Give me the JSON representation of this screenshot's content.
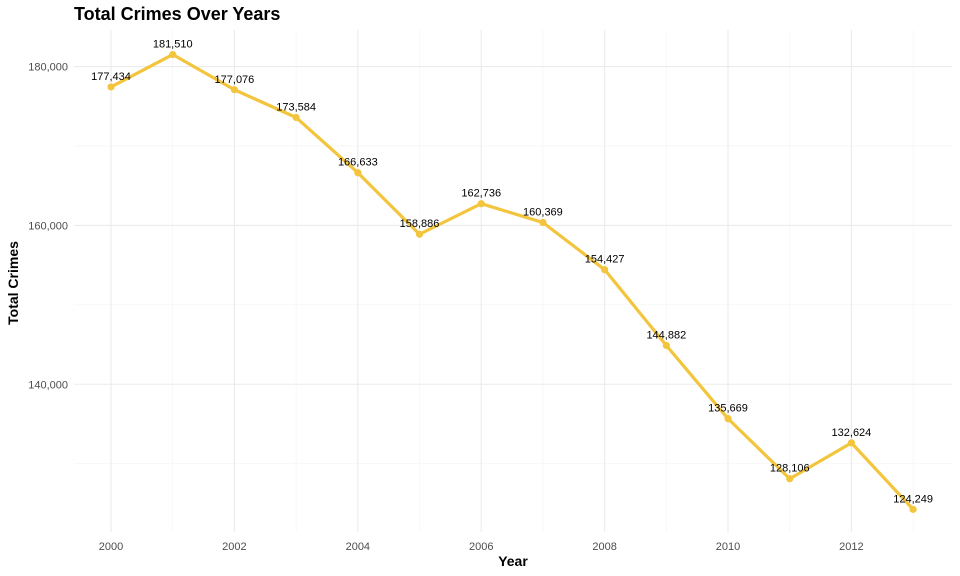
{
  "chart_data": {
    "type": "line",
    "title": "Total Crimes Over Years",
    "xlabel": "Year",
    "ylabel": "Total Crimes",
    "x": [
      2000,
      2001,
      2002,
      2003,
      2004,
      2005,
      2006,
      2007,
      2008,
      2009,
      2010,
      2011,
      2012,
      2013
    ],
    "series": [
      {
        "values": [
          177434,
          181510,
          177076,
          173584,
          166633,
          158886,
          162736,
          160369,
          154427,
          144882,
          135669,
          128106,
          132624,
          124249
        ],
        "labels": [
          "177,434",
          "181,510",
          "177,076",
          "173,584",
          "166,633",
          "158,886",
          "162,736",
          "160,369",
          "154,427",
          "144,882",
          "135,669",
          "128,106",
          "132,624",
          "124,249"
        ],
        "color": "#f2c53d"
      }
    ],
    "x_ticks": [
      2000,
      2002,
      2004,
      2006,
      2008,
      2010,
      2012
    ],
    "x_tick_labels": [
      "2000",
      "2002",
      "2004",
      "2006",
      "2008",
      "2010",
      "2012"
    ],
    "y_ticks": [
      140000,
      160000,
      180000
    ],
    "y_tick_labels": [
      "140,000",
      "160,000",
      "180,000"
    ],
    "xlim": [
      1999.4,
      2013.63
    ],
    "ylim": [
      121400,
      184600
    ],
    "grid": true,
    "legend": "none"
  }
}
